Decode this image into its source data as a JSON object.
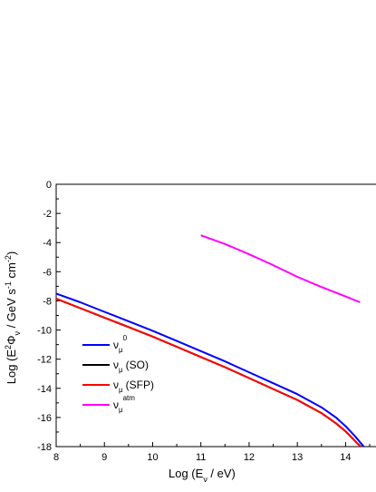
{
  "chart_data": {
    "type": "line",
    "xlabel": "Log (E_ν / eV)",
    "ylabel": "Log (E²Φ_ν / GeV s⁻¹ cm⁻²)",
    "xlim": [
      8,
      14.8
    ],
    "ylim": [
      -18,
      0
    ],
    "xticks": [
      8,
      9,
      10,
      11,
      12,
      13,
      14
    ],
    "yticks": [
      0,
      -2,
      -4,
      -6,
      -8,
      -10,
      -12,
      -14,
      -16,
      -18
    ],
    "grid": false,
    "legend_position": "bottom-left",
    "legend_text": {
      "nu": "ν",
      "mu": "μ",
      "sup0": "0",
      "so": "(SO)",
      "sfp": "(SFP)",
      "atm": "atm"
    },
    "series": [
      {
        "name": "ν_μ^0",
        "color": "#0000ff",
        "x": [
          8,
          8.5,
          9,
          9.5,
          10,
          10.5,
          11,
          11.5,
          12,
          12.5,
          13,
          13.5,
          13.8,
          14.0,
          14.2,
          14.3,
          14.38
        ],
        "y": [
          -7.5,
          -8.1,
          -8.75,
          -9.4,
          -10.05,
          -10.75,
          -11.45,
          -12.15,
          -12.9,
          -13.65,
          -14.4,
          -15.3,
          -16.0,
          -16.6,
          -17.3,
          -17.7,
          -18.0
        ]
      },
      {
        "name": "ν_μ (SO)",
        "color": "#000000",
        "x": [
          8,
          8.5,
          9,
          9.5,
          10,
          10.5,
          11,
          11.5,
          12,
          12.5,
          13,
          13.5,
          13.8,
          14.0,
          14.15,
          14.25,
          14.32
        ],
        "y": [
          -7.85,
          -8.5,
          -9.15,
          -9.8,
          -10.45,
          -11.15,
          -11.85,
          -12.55,
          -13.3,
          -14.05,
          -14.8,
          -15.7,
          -16.4,
          -16.95,
          -17.45,
          -17.8,
          -18.0
        ]
      },
      {
        "name": "ν_μ (SFP)",
        "color": "#ff0000",
        "x": [
          8,
          8.5,
          9,
          9.5,
          10,
          10.5,
          11,
          11.5,
          12,
          12.5,
          13,
          13.5,
          13.8,
          14.0,
          14.15,
          14.25,
          14.32
        ],
        "y": [
          -7.85,
          -8.5,
          -9.15,
          -9.8,
          -10.45,
          -11.15,
          -11.85,
          -12.55,
          -13.3,
          -14.05,
          -14.8,
          -15.7,
          -16.4,
          -16.95,
          -17.45,
          -17.8,
          -18.0
        ]
      },
      {
        "name": "ν_μ^atm",
        "color": "#ff00ff",
        "x": [
          11,
          11.5,
          12,
          12.5,
          13,
          13.5,
          14,
          14.3
        ],
        "y": [
          -3.5,
          -4.1,
          -4.8,
          -5.55,
          -6.35,
          -7.05,
          -7.7,
          -8.1
        ]
      }
    ]
  }
}
